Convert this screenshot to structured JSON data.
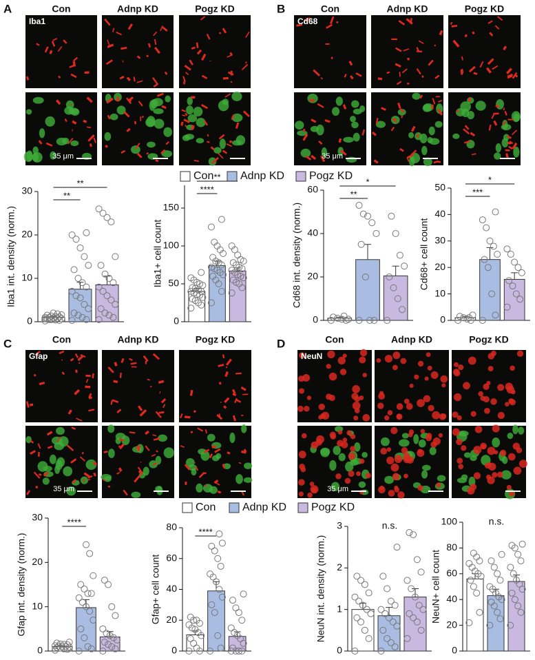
{
  "groups": [
    {
      "name": "Con",
      "color": "#ffffff"
    },
    {
      "name": "Adnp KD",
      "color": "#a9bde3"
    },
    {
      "name": "Pogz KD",
      "color": "#c9b9e0"
    }
  ],
  "panels": [
    {
      "letter": "A",
      "marker": "Iba1",
      "scale_bar": "35 μm"
    },
    {
      "letter": "B",
      "marker": "Cd68",
      "scale_bar": "35 μm"
    },
    {
      "letter": "C",
      "marker": "Gfap",
      "scale_bar": "35 μm"
    },
    {
      "letter": "D",
      "marker": "NeuN",
      "scale_bar": "35 μm"
    }
  ],
  "chart_data": [
    {
      "type": "bar",
      "ylabel": "Iba1 int. density (norm.)",
      "ylim": [
        0,
        30
      ],
      "yticks": [
        0,
        10,
        20,
        30
      ],
      "values": [
        1.0,
        7.5,
        8.5
      ],
      "errors": [
        0.2,
        1.6,
        2.0
      ],
      "significance": [
        "**",
        "**"
      ],
      "points": [
        [
          0.2,
          0.3,
          0.4,
          0.5,
          0.6,
          0.7,
          0.8,
          0.9,
          1.0,
          1.0,
          1.1,
          1.2,
          1.3,
          1.5,
          1.6,
          1.8,
          2.0,
          0.5,
          0.7,
          1.1
        ],
        [
          0.3,
          0.5,
          1,
          1.5,
          2,
          3,
          4,
          5.5,
          6,
          7,
          8,
          9,
          10,
          12,
          13,
          15,
          17,
          19,
          20,
          20.5
        ],
        [
          0.5,
          1,
          1.5,
          2,
          3,
          4,
          5,
          6,
          7,
          8,
          9,
          10,
          11,
          13,
          15,
          23,
          24,
          25,
          26
        ]
      ]
    },
    {
      "type": "bar",
      "ylabel": "Iba1+ cell count",
      "ylim": [
        0,
        180
      ],
      "yticks": [
        0,
        50,
        100,
        150
      ],
      "values": [
        40,
        74,
        67
      ],
      "errors": [
        4,
        6,
        4
      ],
      "significance": [
        "****",
        "**"
      ],
      "points": [
        [
          18,
          22,
          25,
          28,
          30,
          32,
          35,
          36,
          38,
          40,
          40,
          42,
          44,
          45,
          48,
          50,
          52,
          55,
          58,
          65
        ],
        [
          25,
          40,
          50,
          55,
          60,
          62,
          65,
          68,
          70,
          72,
          75,
          78,
          80,
          85,
          90,
          95,
          100,
          105,
          125,
          135
        ],
        [
          38,
          45,
          50,
          52,
          55,
          58,
          60,
          62,
          65,
          68,
          70,
          72,
          75,
          78,
          80,
          82,
          88,
          95,
          100
        ]
      ]
    },
    {
      "type": "bar",
      "ylabel": "Cd68 int. density (norm.)",
      "ylim": [
        0,
        60
      ],
      "yticks": [
        0,
        20,
        40,
        60
      ],
      "values": [
        1,
        28,
        20.5
      ],
      "errors": [
        0.5,
        7,
        4.5
      ],
      "significance": [
        "**",
        "*"
      ],
      "points": [
        [
          0,
          0,
          0.5,
          1,
          1.5,
          0.5,
          2
        ],
        [
          0,
          0,
          0,
          20,
          35,
          40,
          45,
          48,
          49,
          53
        ],
        [
          0,
          5,
          10,
          15,
          20,
          25,
          30,
          40,
          48
        ]
      ]
    },
    {
      "type": "bar",
      "ylabel": "Cd68+ cell count",
      "ylim": [
        0,
        50
      ],
      "yticks": [
        0,
        10,
        20,
        30,
        40,
        50
      ],
      "values": [
        1,
        23,
        15.5
      ],
      "errors": [
        0.5,
        4.5,
        2.5
      ],
      "significance": [
        "***",
        "*"
      ],
      "points": [
        [
          0,
          0,
          0.5,
          1,
          1.5,
          2,
          1
        ],
        [
          0,
          2,
          10,
          20,
          23,
          25,
          28,
          30,
          35,
          38,
          41
        ],
        [
          5,
          8,
          10,
          13,
          15,
          18,
          20,
          22,
          25,
          27
        ]
      ]
    },
    {
      "type": "bar",
      "ylabel": "Gfap int. density (norm.)",
      "ylim": [
        0,
        30
      ],
      "yticks": [
        0,
        10,
        20,
        30
      ],
      "values": [
        1,
        9.8,
        3.2
      ],
      "errors": [
        0.2,
        1.8,
        1.2
      ],
      "significance": [
        "****"
      ],
      "points": [
        [
          0.2,
          0.4,
          0.5,
          0.7,
          0.8,
          0.9,
          1,
          1,
          1.1,
          1.2,
          1.4,
          1.5,
          1.6,
          1.8,
          2
        ],
        [
          0,
          0.5,
          1,
          3,
          5,
          7,
          9,
          10,
          11,
          12,
          13,
          13,
          14,
          15,
          17,
          22,
          24
        ],
        [
          0,
          0.5,
          1,
          1.5,
          2,
          2.5,
          3,
          3.5,
          4,
          5,
          8,
          10,
          15,
          16
        ]
      ]
    },
    {
      "type": "bar",
      "ylabel": "Gfap+ cell count",
      "ylim": [
        0,
        80
      ],
      "yticks": [
        0,
        20,
        40,
        60,
        80
      ],
      "values": [
        10.5,
        39,
        9.5
      ],
      "errors": [
        2.5,
        6,
        3
      ],
      "significance": [
        "****"
      ],
      "points": [
        [
          0,
          0,
          2,
          5,
          8,
          10,
          12,
          14,
          15,
          17,
          18,
          20,
          20,
          22
        ],
        [
          0,
          2,
          10,
          25,
          30,
          35,
          40,
          45,
          48,
          50,
          55,
          60,
          65,
          68,
          70,
          76
        ],
        [
          0,
          0,
          0,
          0,
          2,
          5,
          8,
          10,
          12,
          15,
          20,
          25,
          28,
          33,
          37
        ]
      ]
    },
    {
      "type": "bar",
      "ylabel": "NeuN int. density (norm.)",
      "ylim": [
        0,
        3
      ],
      "yticks": [
        0,
        1,
        2,
        3
      ],
      "values": [
        1.0,
        0.85,
        1.3
      ],
      "errors": [
        0.15,
        0.2,
        0.2
      ],
      "annotation": "n.s.",
      "points": [
        [
          0,
          0.3,
          0.5,
          0.7,
          0.8,
          0.9,
          1,
          1.1,
          1.2,
          1.3,
          1.4,
          1.6,
          1.7,
          1.8
        ],
        [
          0,
          0.1,
          0.2,
          0.3,
          0.5,
          0.6,
          0.7,
          0.8,
          0.9,
          1,
          1.1,
          1.2,
          1.5,
          1.8,
          2.5
        ],
        [
          0.3,
          0.5,
          0.7,
          0.8,
          0.9,
          1,
          1.1,
          1.3,
          1.5,
          1.7,
          1.9,
          2.2,
          2.8,
          2.85
        ]
      ]
    },
    {
      "type": "bar",
      "ylabel": "NeuN+ cell count",
      "ylim": [
        0,
        100
      ],
      "yticks": [
        0,
        20,
        40,
        60,
        80,
        100
      ],
      "values": [
        56,
        43,
        54
      ],
      "errors": [
        4,
        5,
        5
      ],
      "annotation": "n.s.",
      "points": [
        [
          22,
          30,
          45,
          50,
          55,
          58,
          60,
          62,
          65,
          68,
          70,
          73,
          76
        ],
        [
          20,
          25,
          30,
          35,
          38,
          40,
          42,
          45,
          48,
          50,
          55,
          60,
          65,
          70,
          75
        ],
        [
          20,
          30,
          35,
          40,
          45,
          48,
          52,
          55,
          60,
          65,
          70,
          75,
          80,
          82,
          83
        ]
      ]
    }
  ]
}
